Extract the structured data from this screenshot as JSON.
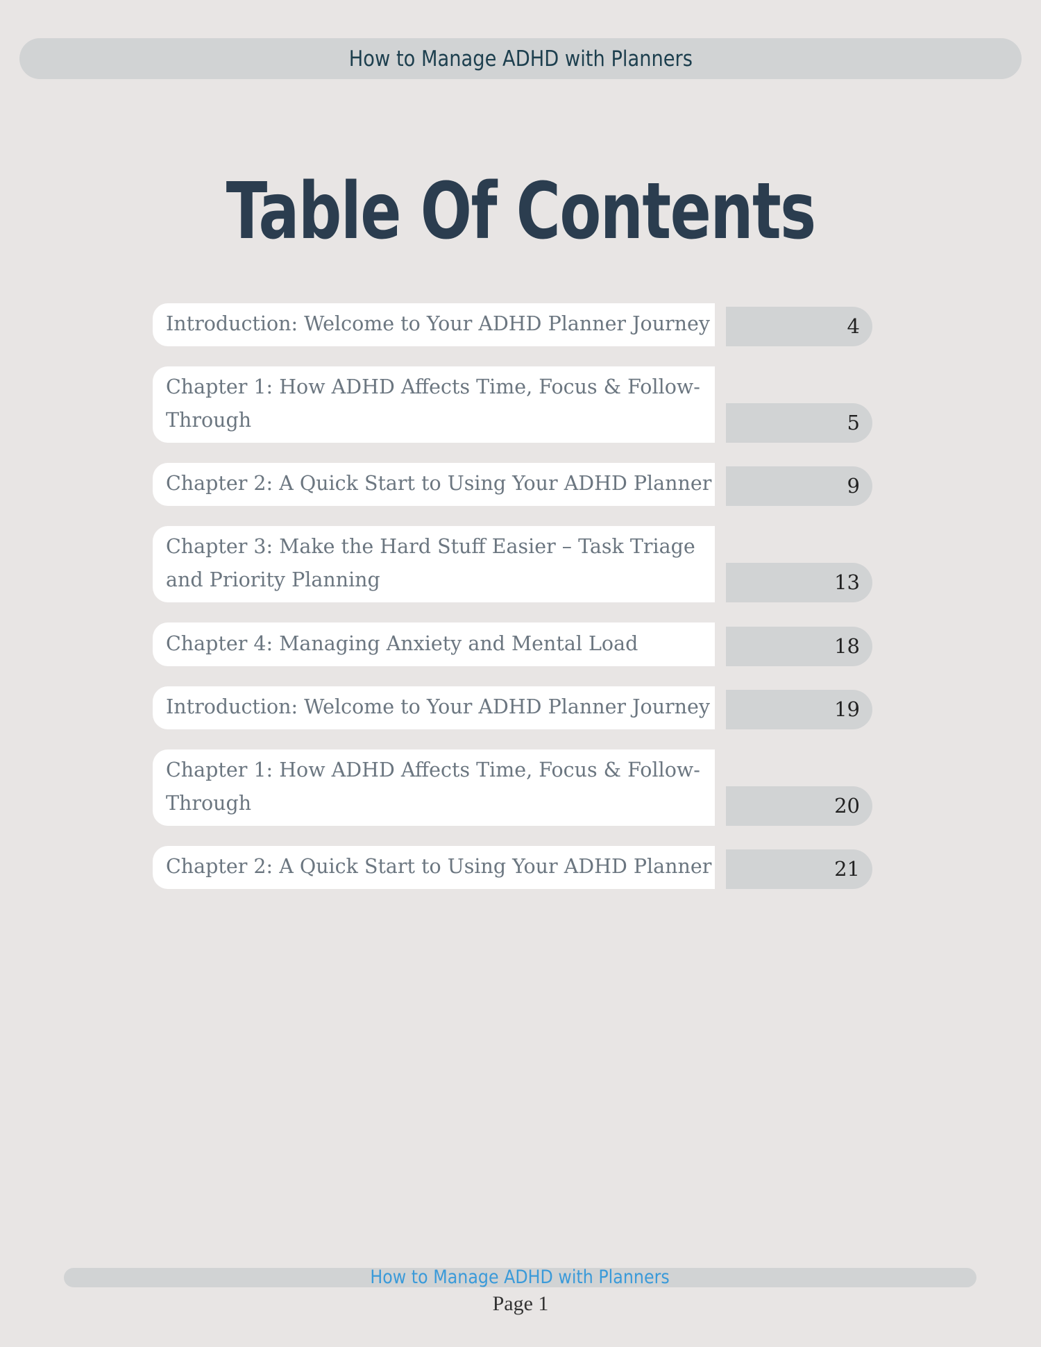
{
  "header": {
    "title": "How to Manage ADHD with Planners"
  },
  "page_title": "Table Of Contents",
  "toc": [
    {
      "label": "Introduction: Welcome to Your ADHD Planner Journey",
      "page": "4"
    },
    {
      "label": "Chapter 1: How ADHD Affects Time, Focus & Follow-Through",
      "page": "5"
    },
    {
      "label": "Chapter 2: A Quick Start to Using Your ADHD Planner",
      "page": "9"
    },
    {
      "label": "Chapter 3: Make the Hard Stuff Easier – Task Triage and Priority Planning",
      "page": "13"
    },
    {
      "label": "Chapter 4: Managing Anxiety and Mental Load",
      "page": "18"
    },
    {
      "label": "Introduction: Welcome to Your ADHD Planner Journey",
      "page": "19"
    },
    {
      "label": "Chapter 1: How ADHD Affects Time, Focus & Follow-Through",
      "page": "20"
    },
    {
      "label": "Chapter 2: A Quick Start to Using Your ADHD Planner",
      "page": "21"
    }
  ],
  "footer": {
    "title": "How to Manage ADHD with Planners",
    "page_label": "Page 1"
  },
  "colors": {
    "background": "#e8e5e4",
    "bar": "#d1d3d4",
    "title": "#2b3d4f",
    "footer_link": "#3a9ad9"
  }
}
